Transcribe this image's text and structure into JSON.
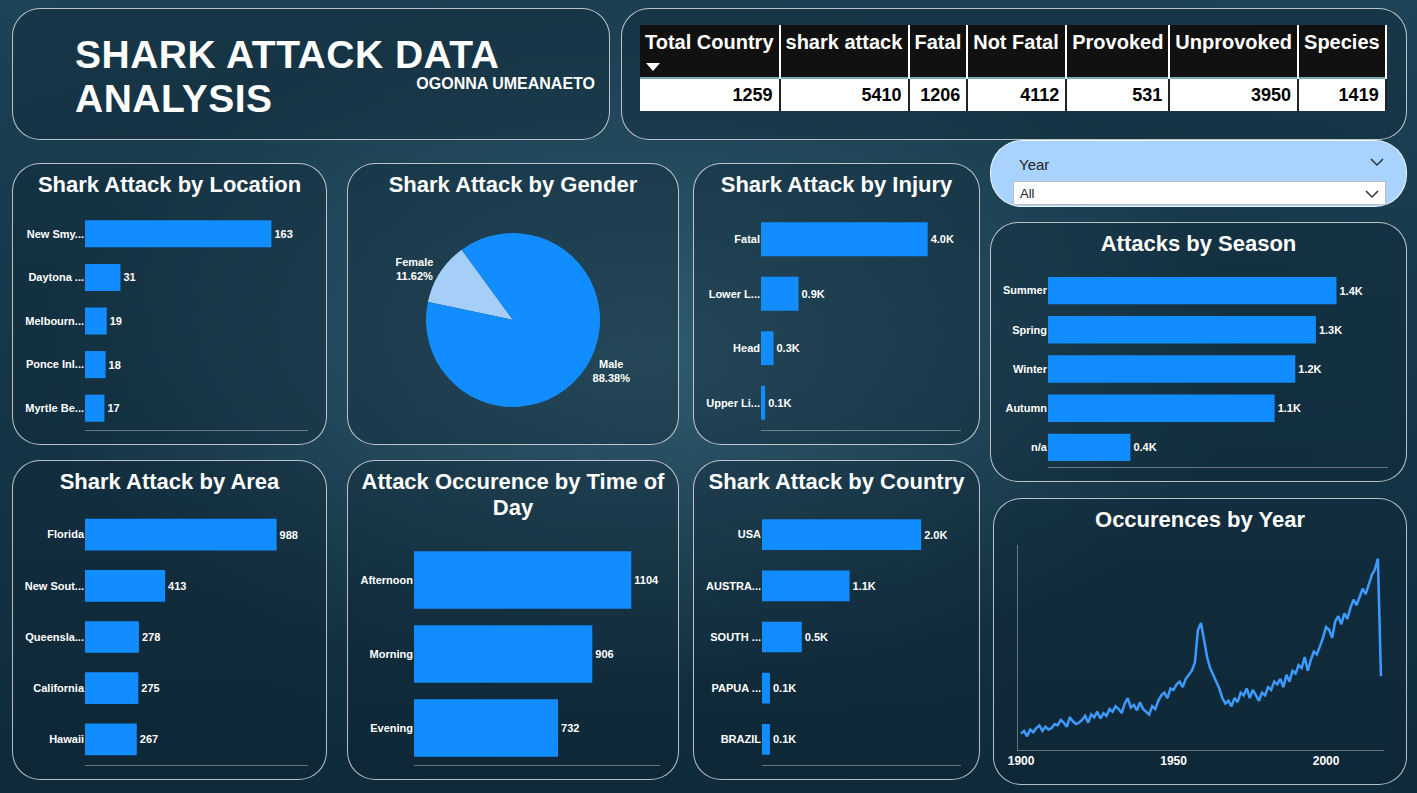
{
  "header": {
    "title": "SHARK ATTACK DATA ANALYSIS",
    "author": "OGONNA UMEANAETO"
  },
  "kpi_table": {
    "columns": [
      "Total Country",
      "shark attack",
      "Fatal",
      "Not Fatal",
      "Provoked",
      "Unprovoked",
      "Species"
    ],
    "values": [
      1259,
      5410,
      1206,
      4112,
      531,
      3950,
      1419
    ]
  },
  "year_filter": {
    "label": "Year",
    "selection": "All"
  },
  "chart_data": [
    {
      "type": "bar",
      "title": "Shark Attack by Location",
      "orientation": "horizontal",
      "categories": [
        "New Smy...",
        "Daytona ...",
        "Melbourn...",
        "Ponce Inl...",
        "Myrtle Be..."
      ],
      "values": [
        163,
        31,
        19,
        18,
        17
      ],
      "color": "#118dff",
      "xlim": [
        0,
        195
      ],
      "data_labels": true,
      "tick_labels": "y",
      "grid": false
    },
    {
      "type": "pie",
      "title": "Shark Attack by Gender",
      "categories": [
        "Female",
        "Male"
      ],
      "values": [
        11.62,
        88.38
      ],
      "value_labels": [
        "11.62%",
        "88.38%"
      ],
      "colors": [
        "#a6cff7",
        "#118dff"
      ],
      "data_labels": true
    },
    {
      "type": "bar",
      "title": "Shark Attack by Injury",
      "orientation": "horizontal",
      "categories": [
        "Fatal",
        "Lower L...",
        "Head",
        "Upper Li..."
      ],
      "values": [
        4000,
        900,
        300,
        100
      ],
      "value_labels": [
        "4.0K",
        "0.9K",
        "0.3K",
        "0.1K"
      ],
      "color": "#118dff",
      "xlim": [
        0,
        4800
      ],
      "data_labels": true,
      "tick_labels": "y",
      "grid": false
    },
    {
      "type": "bar",
      "title": "Attacks by Season",
      "orientation": "horizontal",
      "categories": [
        "Summer",
        "Spring",
        "Winter",
        "Autumn",
        "n/a"
      ],
      "values": [
        1400,
        1300,
        1200,
        1100,
        400
      ],
      "value_labels": [
        "1.4K",
        "1.3K",
        "1.2K",
        "1.1K",
        "0.4K"
      ],
      "color": "#118dff",
      "xlim": [
        0,
        1650
      ],
      "data_labels": true,
      "tick_labels": "y",
      "grid": false
    },
    {
      "type": "bar",
      "title": "Shark Attack by Area",
      "orientation": "horizontal",
      "categories": [
        "Florida",
        "New Sout...",
        "Queensla...",
        "California",
        "Hawaii"
      ],
      "values": [
        988,
        413,
        278,
        275,
        267
      ],
      "color": "#118dff",
      "xlim": [
        0,
        1150
      ],
      "data_labels": true,
      "tick_labels": "y",
      "grid": false
    },
    {
      "type": "bar",
      "title": "Attack Occurence by Time of Day",
      "orientation": "horizontal",
      "categories": [
        "Afternoon",
        "Morning",
        "Evening"
      ],
      "values": [
        1104,
        906,
        732
      ],
      "color": "#118dff",
      "xlim": [
        0,
        1250
      ],
      "data_labels": true,
      "tick_labels": "y",
      "grid": false
    },
    {
      "type": "bar",
      "title": "Shark Attack by Country",
      "orientation": "horizontal",
      "categories": [
        "USA",
        "AUSTRA...",
        "SOUTH ...",
        "PAPUA ...",
        "BRAZIL"
      ],
      "values": [
        2000,
        1100,
        500,
        100,
        100
      ],
      "value_labels": [
        "2.0K",
        "1.1K",
        "0.5K",
        "0.1K",
        "0.1K"
      ],
      "color": "#118dff",
      "xlim": [
        0,
        2500
      ],
      "data_labels": true,
      "tick_labels": "y",
      "grid": false
    },
    {
      "type": "line",
      "title": "Occurences by Year",
      "x": [
        1900,
        1901,
        1902,
        1903,
        1904,
        1905,
        1906,
        1907,
        1908,
        1909,
        1910,
        1911,
        1912,
        1913,
        1914,
        1915,
        1916,
        1917,
        1918,
        1919,
        1920,
        1921,
        1922,
        1923,
        1924,
        1925,
        1926,
        1927,
        1928,
        1929,
        1930,
        1931,
        1932,
        1933,
        1934,
        1935,
        1936,
        1937,
        1938,
        1939,
        1940,
        1941,
        1942,
        1943,
        1944,
        1945,
        1946,
        1947,
        1948,
        1949,
        1950,
        1951,
        1952,
        1953,
        1954,
        1955,
        1956,
        1957,
        1958,
        1959,
        1960,
        1961,
        1962,
        1963,
        1964,
        1965,
        1966,
        1967,
        1968,
        1969,
        1970,
        1971,
        1972,
        1973,
        1974,
        1975,
        1976,
        1977,
        1978,
        1979,
        1980,
        1981,
        1982,
        1983,
        1984,
        1985,
        1986,
        1987,
        1988,
        1989,
        1990,
        1991,
        1992,
        1993,
        1994,
        1995,
        1996,
        1997,
        1998,
        1999,
        2000,
        2001,
        2002,
        2003,
        2004,
        2005,
        2006,
        2007,
        2008,
        2009,
        2010,
        2011,
        2012,
        2013,
        2014,
        2015,
        2016,
        2017,
        2018
      ],
      "values": [
        12,
        14,
        10,
        15,
        13,
        16,
        18,
        14,
        17,
        15,
        16,
        19,
        18,
        22,
        20,
        17,
        24,
        21,
        19,
        20,
        22,
        25,
        20,
        26,
        24,
        28,
        23,
        27,
        25,
        30,
        28,
        32,
        30,
        27,
        34,
        38,
        31,
        33,
        29,
        35,
        30,
        28,
        26,
        32,
        30,
        36,
        40,
        42,
        38,
        45,
        44,
        48,
        50,
        46,
        52,
        55,
        58,
        64,
        88,
        93,
        80,
        68,
        60,
        55,
        50,
        45,
        38,
        34,
        36,
        32,
        38,
        35,
        42,
        40,
        45,
        38,
        44,
        40,
        36,
        42,
        40,
        46,
        44,
        50,
        48,
        52,
        46,
        55,
        50,
        58,
        56,
        62,
        60,
        68,
        58,
        66,
        72,
        70,
        76,
        82,
        90,
        88,
        82,
        94,
        98,
        92,
        100,
        96,
        104,
        110,
        106,
        112,
        118,
        114,
        122,
        128,
        132,
        140,
        54
      ],
      "color": "#3d9bff",
      "xlim": [
        1899,
        2019
      ],
      "xticks": [
        1900,
        1950,
        2000
      ],
      "ylim": [
        0,
        150
      ],
      "tick_labels": "x",
      "grid": false
    }
  ]
}
